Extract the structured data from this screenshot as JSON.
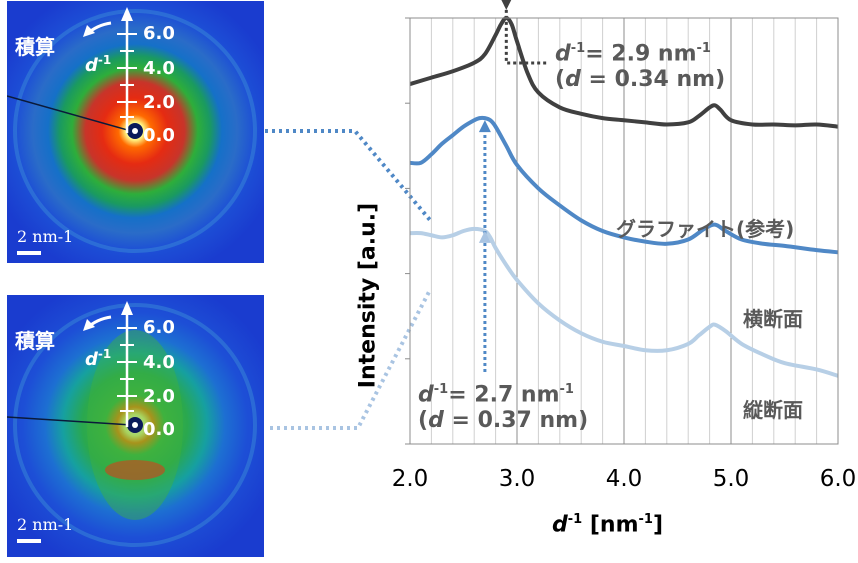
{
  "panels": [
    {
      "sum_label": "積算",
      "d_inv_label": "d",
      "d_inv_sup": "-1",
      "ticks": [
        "6.0",
        "4.0",
        "2.0",
        "0.0"
      ],
      "scale_label": "2 nm-1"
    },
    {
      "sum_label": "積算",
      "d_inv_label": "d",
      "d_inv_sup": "-1",
      "ticks": [
        "6.0",
        "4.0",
        "2.0",
        "0.0"
      ],
      "scale_label": "2 nm-1"
    }
  ],
  "annotations": {
    "top_line1_d": "d",
    "top_line1_sup": "-1",
    "top_line1_value": "= 2.9 nm",
    "top_line1_unit_sup": "-1",
    "top_line2_open": "(",
    "top_line2_d": "d",
    "top_line2_rest": " = 0.34 nm)",
    "bottom_line1_d": "d",
    "bottom_line1_sup": "-1",
    "bottom_line1_value": "= 2.7 nm",
    "bottom_line1_unit_sup": "-1",
    "bottom_line2_open": "(",
    "bottom_line2_d": "d",
    "bottom_line2_rest": " = 0.37 nm)"
  },
  "chart_data": {
    "type": "line",
    "xlabel_d": "d",
    "xlabel_sup": "-1",
    "xlabel_unit": " [nm",
    "xlabel_unit_sup": "-1",
    "xlabel_close": "]",
    "ylabel": "Intensity [a.u.]",
    "xlim": [
      2.0,
      6.0
    ],
    "ylim": [
      0,
      10
    ],
    "xticks": [
      "2.0",
      "3.0",
      "4.0",
      "5.0",
      "6.0"
    ],
    "grid": true,
    "series": [
      {
        "name": "グラファイト(参考)",
        "color": "#404040",
        "x": [
          2.0,
          2.2,
          2.4,
          2.6,
          2.7,
          2.8,
          2.85,
          2.9,
          2.95,
          3.0,
          3.1,
          3.2,
          3.4,
          3.6,
          3.8,
          4.0,
          4.2,
          4.4,
          4.6,
          4.7,
          4.8,
          4.85,
          4.9,
          5.0,
          5.2,
          5.4,
          5.6,
          5.8,
          6.0
        ],
        "y": [
          8.45,
          8.6,
          8.75,
          8.95,
          9.15,
          9.6,
          9.85,
          10.0,
          9.85,
          9.45,
          8.7,
          8.25,
          7.9,
          7.75,
          7.65,
          7.6,
          7.55,
          7.5,
          7.55,
          7.7,
          7.9,
          7.95,
          7.85,
          7.6,
          7.5,
          7.5,
          7.48,
          7.5,
          7.45
        ]
      },
      {
        "name": "横断面",
        "color": "#4f88c6",
        "x": [
          2.0,
          2.1,
          2.2,
          2.3,
          2.4,
          2.5,
          2.6,
          2.65,
          2.7,
          2.75,
          2.8,
          2.9,
          3.0,
          3.2,
          3.4,
          3.6,
          3.8,
          4.0,
          4.2,
          4.4,
          4.6,
          4.75,
          4.85,
          4.95,
          5.1,
          5.3,
          5.5,
          5.8,
          6.0
        ],
        "y": [
          6.6,
          6.6,
          6.8,
          7.05,
          7.25,
          7.45,
          7.6,
          7.65,
          7.65,
          7.6,
          7.45,
          7.0,
          6.55,
          6.0,
          5.6,
          5.25,
          5.0,
          4.85,
          4.75,
          4.7,
          4.8,
          5.05,
          5.15,
          5.0,
          4.8,
          4.7,
          4.65,
          4.55,
          4.5
        ]
      },
      {
        "name": "縦断面",
        "color": "#b7cfe6",
        "x": [
          2.0,
          2.1,
          2.2,
          2.3,
          2.4,
          2.5,
          2.6,
          2.7,
          2.75,
          2.8,
          2.9,
          3.0,
          3.2,
          3.4,
          3.6,
          3.8,
          4.0,
          4.2,
          4.4,
          4.6,
          4.7,
          4.8,
          4.85,
          4.95,
          5.1,
          5.3,
          5.5,
          5.8,
          6.0
        ],
        "y": [
          4.95,
          4.95,
          4.9,
          4.85,
          4.9,
          5.0,
          5.05,
          5.0,
          4.85,
          4.6,
          4.2,
          3.85,
          3.3,
          2.9,
          2.6,
          2.4,
          2.3,
          2.2,
          2.2,
          2.35,
          2.55,
          2.75,
          2.8,
          2.65,
          2.35,
          2.1,
          1.9,
          1.75,
          1.6
        ]
      }
    ],
    "arrows": [
      {
        "x": 2.9,
        "color": "#404040"
      },
      {
        "x": 2.7,
        "color": "#4f88c6"
      },
      {
        "x": 2.7,
        "color": "#a9c4e2"
      }
    ]
  }
}
